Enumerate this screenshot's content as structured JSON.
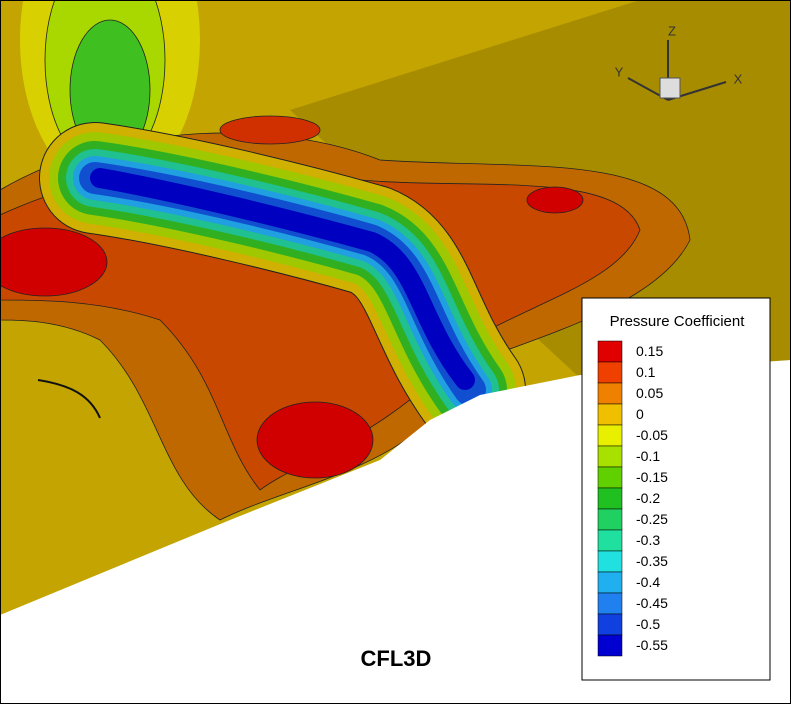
{
  "axes": {
    "x": "X",
    "y": "Y",
    "z": "Z"
  },
  "caption": "CFL3D",
  "legend": {
    "title": "Pressure Coefficient",
    "levels": [
      {
        "value": 0.15,
        "color": "#e00000"
      },
      {
        "value": 0.1,
        "color": "#f04000"
      },
      {
        "value": 0.05,
        "color": "#f08000"
      },
      {
        "value": 0,
        "color": "#f0c000"
      },
      {
        "value": -0.05,
        "color": "#e8f000"
      },
      {
        "value": -0.1,
        "color": "#a8e000"
      },
      {
        "value": -0.15,
        "color": "#60d000"
      },
      {
        "value": -0.2,
        "color": "#20c020"
      },
      {
        "value": -0.25,
        "color": "#20d060"
      },
      {
        "value": -0.3,
        "color": "#20e0a0"
      },
      {
        "value": -0.35,
        "color": "#20e0e0"
      },
      {
        "value": -0.4,
        "color": "#20b0f0"
      },
      {
        "value": -0.45,
        "color": "#2080f0"
      },
      {
        "value": -0.5,
        "color": "#1040e0"
      },
      {
        "value": -0.55,
        "color": "#0000d0"
      }
    ]
  }
}
